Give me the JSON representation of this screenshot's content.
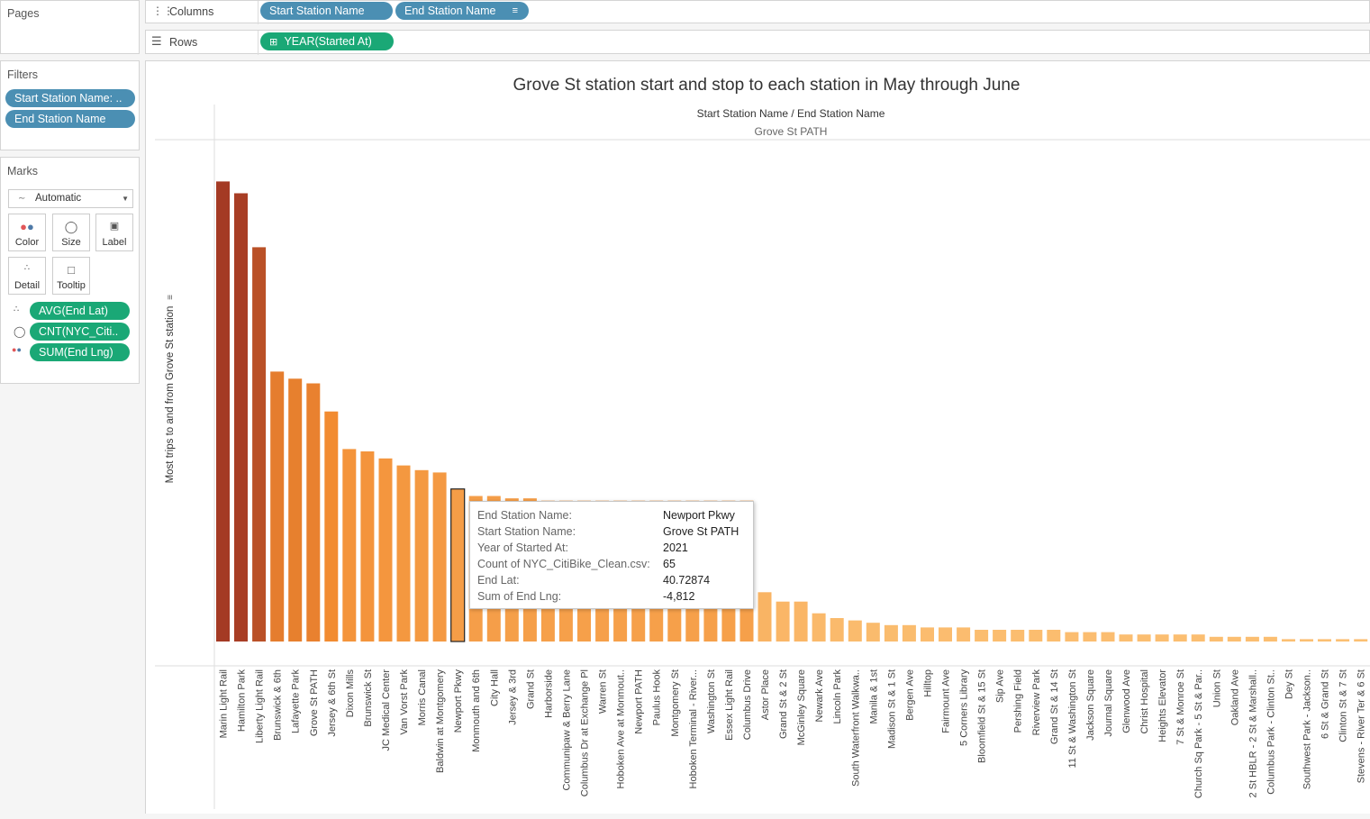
{
  "pages_panel": {
    "title": "Pages"
  },
  "shelves": {
    "columns_label": "Columns",
    "rows_label": "Rows",
    "columns_pills": [
      "Start Station Name",
      "End Station Name"
    ],
    "rows_pills": [
      "YEAR(Started At)"
    ]
  },
  "filters": {
    "title": "Filters",
    "items": [
      "Start Station Name: ..",
      "End Station Name"
    ]
  },
  "marks": {
    "title": "Marks",
    "mark_type": "Automatic",
    "buttons": [
      "Color",
      "Size",
      "Label",
      "Detail",
      "Tooltip"
    ],
    "pills": [
      "AVG(End Lat)",
      "CNT(NYC_Citi..",
      "SUM(End Lng)"
    ]
  },
  "colors": {
    "pill_blue": "#4b8fb3",
    "pill_green": "#1aa876",
    "bar_dark": "#a43a24",
    "bar_mid": "#f28b30",
    "bar_light": "#fbbf72"
  },
  "chart_data": {
    "type": "bar",
    "title": "Grove St station start and stop to each station in May through June",
    "header_label": "Start Station Name / End Station Name",
    "group_label": "Grove St PATH",
    "ylabel": "Most trips to and from Grove St station",
    "categories": [
      "Marin Light Rail",
      "Hamilton Park",
      "Liberty Light Rail",
      "Brunswick & 6th",
      "Lafayette Park",
      "Grove St PATH",
      "Jersey & 6th St",
      "Dixon Mills",
      "Brunswick St",
      "JC Medical Center",
      "Van Vorst Park",
      "Morris Canal",
      "Baldwin at Montgomery",
      "Newport Pkwy",
      "Monmouth and 6th",
      "City Hall",
      "Jersey & 3rd",
      "Grand St",
      "Harborside",
      "Communipaw & Berry Lane",
      "Columbus Dr at Exchange Pl",
      "Warren St",
      "Hoboken Ave at Monmout..",
      "Newport PATH",
      "Paulus Hook",
      "Montgomery St",
      "Hoboken Terminal - River...",
      "Washington St",
      "Essex Light Rail",
      "Columbus Drive",
      "Astor Place",
      "Grand St & 2 St",
      "McGinley Square",
      "Newark Ave",
      "Lincoln Park",
      "South Waterfront Walkwa..",
      "Manila & 1st",
      "Madison St & 1 St",
      "Bergen Ave",
      "Hilltop",
      "Fairmount Ave",
      "5 Corners Library",
      "Bloomfield St & 15 St",
      "Sip Ave",
      "Pershing Field",
      "Riverview Park",
      "Grand St & 14 St",
      "11 St & Washington St",
      "Jackson Square",
      "Journal Square",
      "Glenwood Ave",
      "Christ Hospital",
      "Heights Elevator",
      "7 St & Monroe St",
      "Church Sq Park - 5 St & Par..",
      "Union St",
      "Oakland Ave",
      "2 St HBLR - 2 St & Marshall..",
      "Columbus Park - Clinton St..",
      "Dey St",
      "Southwest Park - Jackson..",
      "6 St & Grand St",
      "Clinton St & 7 St",
      "Stevens - River Ter & 6 St"
    ],
    "values": [
      196,
      191,
      168,
      115,
      112,
      110,
      98,
      82,
      81,
      78,
      75,
      73,
      72,
      65,
      62,
      62,
      61,
      61,
      60,
      60,
      60,
      60,
      60,
      60,
      60,
      60,
      60,
      60,
      60,
      60,
      21,
      17,
      17,
      12,
      10,
      9,
      8,
      7,
      7,
      6,
      6,
      6,
      5,
      5,
      5,
      5,
      5,
      4,
      4,
      4,
      3,
      3,
      3,
      3,
      3,
      2,
      2,
      2,
      2,
      1,
      1,
      1,
      1,
      1
    ],
    "ylim": [
      0,
      205
    ],
    "highlighted": "Newport Pkwy",
    "grid": false
  },
  "tooltip": {
    "rows": [
      {
        "key": "End Station Name:",
        "value": "Newport Pkwy"
      },
      {
        "key": "Start Station Name:",
        "value": "Grove St PATH"
      },
      {
        "key": "Year of Started At:",
        "value": "2021"
      },
      {
        "key": "Count of NYC_CitiBike_Clean.csv:",
        "value": "65"
      },
      {
        "key": "End Lat:",
        "value": "40.72874"
      },
      {
        "key": "Sum of End Lng:",
        "value": "-4,812"
      }
    ]
  }
}
